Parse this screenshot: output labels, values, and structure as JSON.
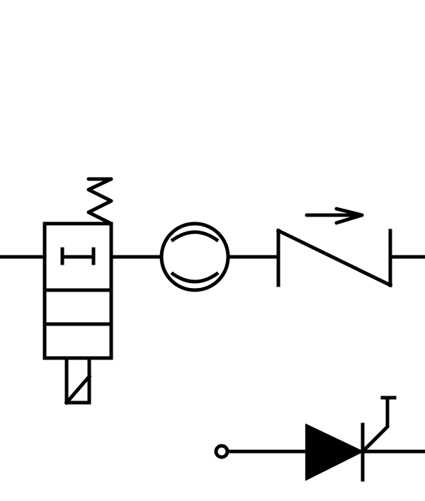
{
  "diagram": {
    "type": "schematic-symbols",
    "colors": {
      "background": "#ffffff",
      "line": "#000000"
    },
    "symbols": [
      {
        "id": "valve",
        "icon": "spring-return-solenoid-valve-icon"
      },
      {
        "id": "lamp",
        "icon": "indicator-lamp-icon"
      },
      {
        "id": "switch",
        "icon": "directional-switch-icon"
      },
      {
        "id": "thyristor",
        "icon": "thyristor-icon"
      }
    ]
  }
}
